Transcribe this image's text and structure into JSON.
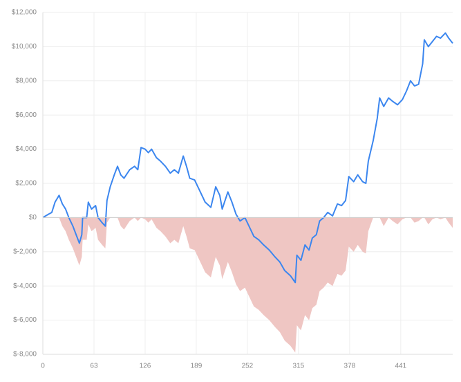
{
  "chart_data": {
    "type": "line",
    "x": [
      0,
      7,
      11,
      15,
      20,
      24,
      28,
      32,
      37,
      41,
      45,
      48,
      49,
      54,
      56,
      60,
      65,
      68,
      73,
      77,
      79,
      83,
      88,
      92,
      96,
      100,
      107,
      113,
      117,
      121,
      126,
      130,
      134,
      140,
      145,
      151,
      157,
      162,
      167,
      173,
      177,
      181,
      187,
      194,
      200,
      207,
      213,
      218,
      221,
      228,
      233,
      238,
      243,
      249,
      254,
      260,
      266,
      272,
      279,
      286,
      292,
      298,
      305,
      311,
      313,
      318,
      323,
      328,
      332,
      337,
      341,
      346,
      351,
      357,
      363,
      368,
      373,
      377,
      383,
      388,
      394,
      398,
      401,
      407,
      412,
      415,
      420,
      426,
      431,
      437,
      443,
      448,
      453,
      458,
      463,
      468,
      470,
      475,
      480,
      485,
      490,
      496,
      500,
      505
    ],
    "series": [
      {
        "type": "line",
        "color": "#3b86ef",
        "values": [
          0,
          200,
          300,
          900,
          1300,
          800,
          500,
          0,
          -500,
          -1000,
          -1500,
          -1000,
          0,
          0,
          900,
          500,
          700,
          0,
          -300,
          -500,
          1000,
          1800,
          2500,
          3000,
          2500,
          2300,
          2800,
          3000,
          2800,
          4100,
          4000,
          3800,
          4000,
          3500,
          3300,
          3000,
          2600,
          2800,
          2600,
          3600,
          3000,
          2300,
          2200,
          1500,
          900,
          600,
          1800,
          1300,
          500,
          1500,
          900,
          200,
          -200,
          0,
          -500,
          -1100,
          -1300,
          -1600,
          -1900,
          -2300,
          -2600,
          -3100,
          -3400,
          -3800,
          -2200,
          -2500,
          -1600,
          -1900,
          -1200,
          -1000,
          -200,
          0,
          300,
          100,
          800,
          700,
          1000,
          2400,
          2100,
          2500,
          2100,
          2000,
          3300,
          4500,
          5800,
          7000,
          6500,
          7000,
          6800,
          6600,
          6900,
          7400,
          8000,
          7700,
          7800,
          9000,
          10400,
          10000,
          10300,
          10600,
          10500,
          10800,
          10500,
          10200
        ]
      },
      {
        "type": "area",
        "color": "#efc6c3",
        "values": [
          0,
          0,
          0,
          0,
          0,
          -500,
          -800,
          -1300,
          -1800,
          -2300,
          -2800,
          -2300,
          -1300,
          -1300,
          -400,
          -800,
          -600,
          -1300,
          -1600,
          -1800,
          -300,
          0,
          0,
          0,
          -500,
          -700,
          -200,
          0,
          -200,
          0,
          -100,
          -300,
          -100,
          -600,
          -800,
          -1100,
          -1500,
          -1300,
          -1500,
          -500,
          -1100,
          -1800,
          -1900,
          -2600,
          -3200,
          -3500,
          -2300,
          -2800,
          -3600,
          -2600,
          -3200,
          -3900,
          -4300,
          -4100,
          -4600,
          -5200,
          -5400,
          -5700,
          -6000,
          -6400,
          -6700,
          -7200,
          -7500,
          -7900,
          -6300,
          -6600,
          -5700,
          -6000,
          -5300,
          -5100,
          -4300,
          -4100,
          -3800,
          -4000,
          -3300,
          -3400,
          -3100,
          -1700,
          -2000,
          -1600,
          -2000,
          -2100,
          -800,
          0,
          0,
          0,
          -500,
          0,
          -200,
          -400,
          -100,
          0,
          0,
          -300,
          -200,
          0,
          0,
          -400,
          -100,
          0,
          -100,
          0,
          -300,
          -600
        ]
      }
    ],
    "xlim": [
      0,
      505
    ],
    "xticks": [
      0,
      63,
      126,
      189,
      252,
      315,
      378,
      441
    ],
    "ylim": [
      -8000,
      12000
    ],
    "yticks": [
      {
        "value": -8000,
        "label": "$-8,000"
      },
      {
        "value": -6000,
        "label": "$-6,000"
      },
      {
        "value": -4000,
        "label": "$-4,000"
      },
      {
        "value": -2000,
        "label": "$-2,000"
      },
      {
        "value": 0,
        "label": "$0"
      },
      {
        "value": 2000,
        "label": "$2,000"
      },
      {
        "value": 4000,
        "label": "$4,000"
      },
      {
        "value": 6000,
        "label": "$6,000"
      },
      {
        "value": 8000,
        "label": "$8,000"
      },
      {
        "value": 10000,
        "label": "$10,000"
      },
      {
        "value": 12000,
        "label": "$12,000"
      }
    ],
    "grid": true
  }
}
